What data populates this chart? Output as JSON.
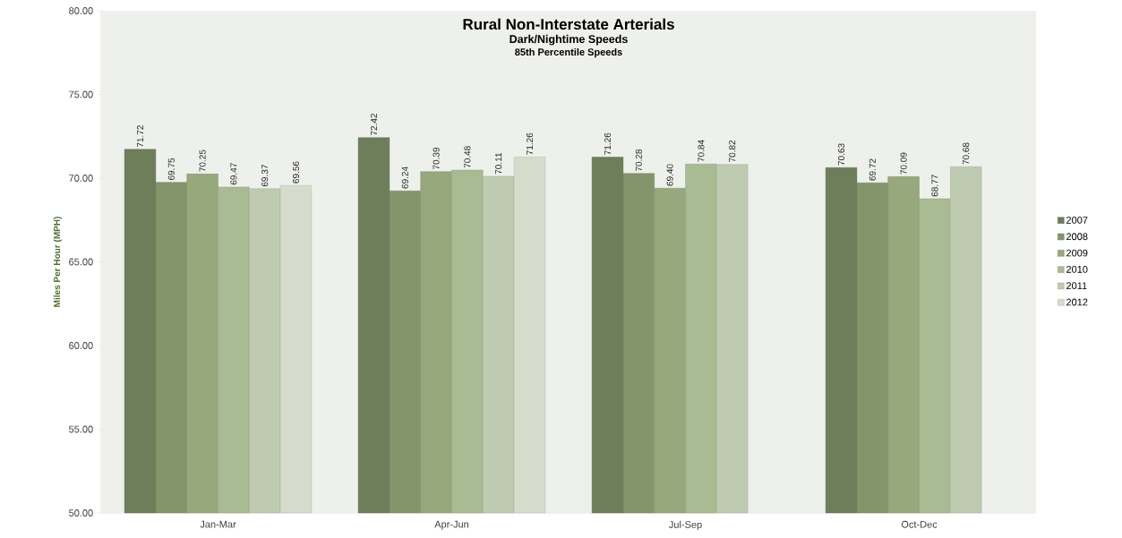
{
  "chart_data": {
    "type": "bar",
    "title": "Rural Non-Interstate Arterials",
    "subtitle": "Dark/Nightime Speeds",
    "annotations": [
      "85th Percentile Speeds"
    ],
    "ylabel": "Miles Per Hour (MPH)",
    "categories": [
      "Jan-Mar",
      "Apr-Jun",
      "Jul-Sep",
      "Oct-Dec"
    ],
    "series": [
      {
        "name": "2007",
        "color": "#6e7d5a",
        "values": [
          71.72,
          72.42,
          71.26,
          70.63
        ],
        "value_labels": [
          "71.72",
          "72.42",
          "71.26",
          "70.63"
        ]
      },
      {
        "name": "2008",
        "color": "#84956c",
        "values": [
          69.75,
          69.24,
          70.28,
          69.72
        ],
        "value_labels": [
          "69.75",
          "69.24",
          "70.28",
          "69.72"
        ]
      },
      {
        "name": "2009",
        "color": "#96a87c",
        "values": [
          70.25,
          70.39,
          69.4,
          70.09
        ],
        "value_labels": [
          "70.25",
          "70.39",
          "69.40",
          "70.09"
        ]
      },
      {
        "name": "2010",
        "color": "#a9bb93",
        "values": [
          69.47,
          70.48,
          70.84,
          68.77
        ],
        "value_labels": [
          "69.47",
          "70.48",
          "70.84",
          "68.77"
        ]
      },
      {
        "name": "2011",
        "color": "#bfcbb0",
        "values": [
          69.37,
          70.11,
          70.82,
          70.68
        ],
        "value_labels": [
          "69.37",
          "70.11",
          "70.82",
          "70.68"
        ]
      },
      {
        "name": "2012",
        "color": "#d5dccb",
        "values": [
          69.56,
          71.26,
          null,
          null
        ],
        "value_labels": [
          "69.56",
          "71.26",
          null,
          null
        ]
      }
    ],
    "ylim": [
      50,
      80
    ],
    "yticks": [
      {
        "value": 50,
        "label": "50.00"
      },
      {
        "value": 55,
        "label": "55.00"
      },
      {
        "value": 60,
        "label": "60.00"
      },
      {
        "value": 65,
        "label": "65.00"
      },
      {
        "value": 70,
        "label": "70.00"
      },
      {
        "value": 75,
        "label": "75.00"
      },
      {
        "value": 80,
        "label": "80.00"
      }
    ],
    "legend": "right",
    "grid": false
  }
}
